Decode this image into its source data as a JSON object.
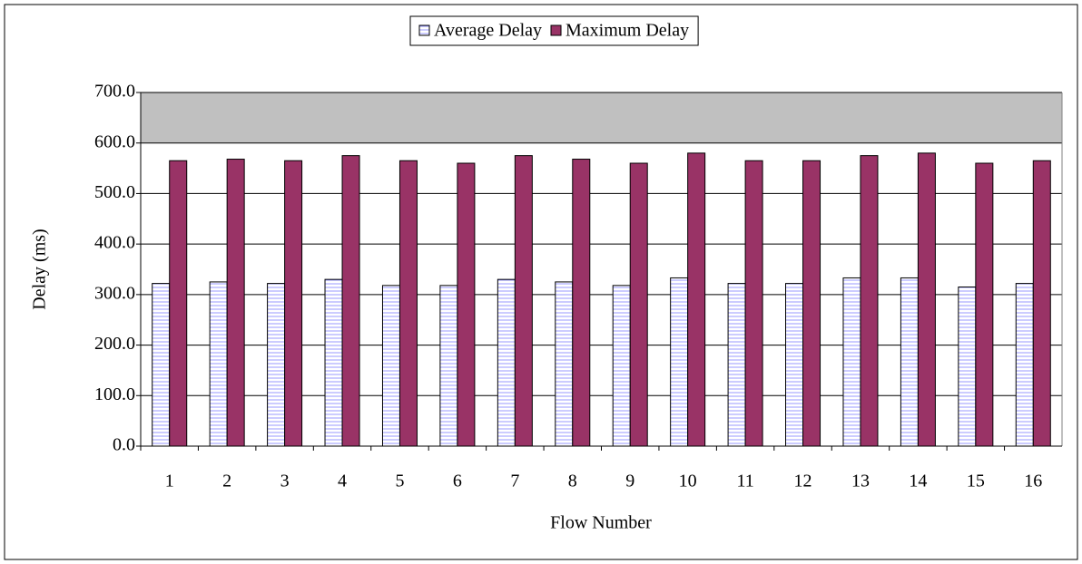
{
  "chart_data": {
    "type": "bar",
    "x_label": "Flow Number",
    "y_label": "Delay (ms)",
    "categories": [
      "1",
      "2",
      "3",
      "4",
      "5",
      "6",
      "7",
      "8",
      "9",
      "10",
      "11",
      "12",
      "13",
      "14",
      "15",
      "16"
    ],
    "series": [
      {
        "name": "Average Delay",
        "color": "#9999ff",
        "values": [
          322,
          325,
          322,
          330,
          318,
          318,
          330,
          325,
          318,
          333,
          322,
          322,
          333,
          333,
          315,
          322
        ]
      },
      {
        "name": "Maximum Delay",
        "color": "#993366",
        "values": [
          565,
          568,
          565,
          575,
          565,
          560,
          575,
          568,
          560,
          580,
          565,
          565,
          575,
          580,
          560,
          565
        ]
      }
    ],
    "ylim": [
      0,
      700
    ],
    "yticks": [
      {
        "value": 0,
        "label": "0.0"
      },
      {
        "value": 100,
        "label": "100.0"
      },
      {
        "value": 200,
        "label": "200.0"
      },
      {
        "value": 300,
        "label": "300.0"
      },
      {
        "value": 400,
        "label": "400.0"
      },
      {
        "value": 500,
        "label": "500.0"
      },
      {
        "value": 600,
        "label": "600.0"
      },
      {
        "value": 700,
        "label": "700.0"
      }
    ],
    "grid": true,
    "legend": "top"
  }
}
